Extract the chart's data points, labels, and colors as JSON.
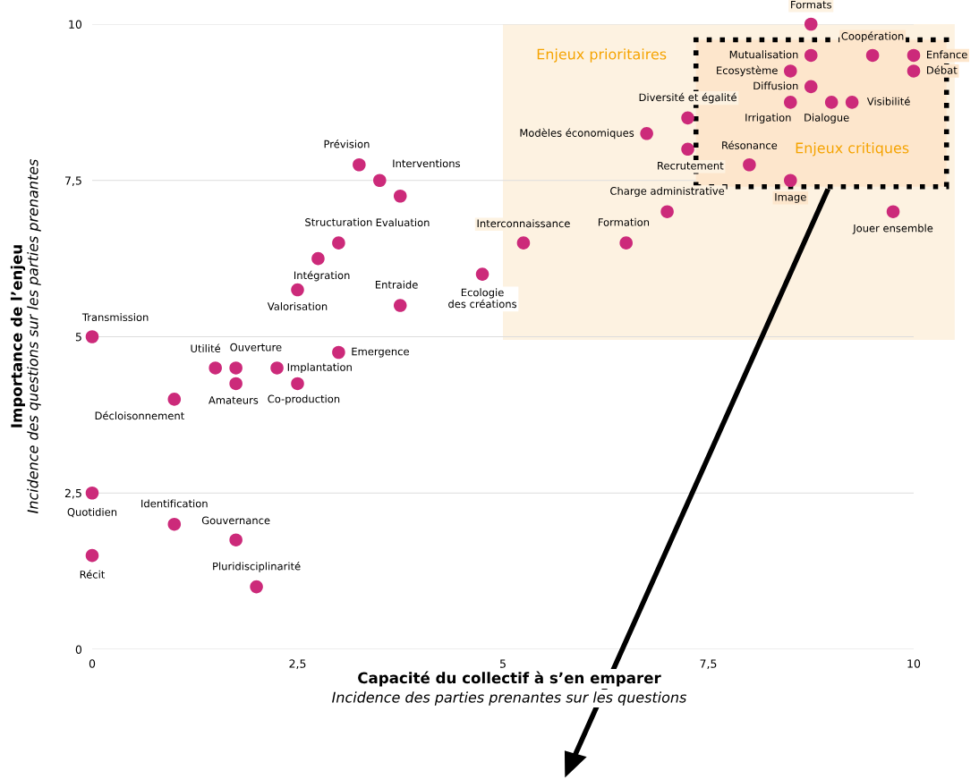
{
  "chart_data": {
    "type": "scatter",
    "xlabel": "Capacité du collectif à s’en emparer",
    "ylabel": "Importance de l’enjeu",
    "x": [
      8.75,
      8.75,
      9.5,
      10,
      10,
      8.5,
      8.75,
      8.5,
      9.0,
      9.25,
      7.25,
      6.75,
      7.25,
      8.0,
      8.5,
      7.0,
      9.75,
      6.5,
      5.25,
      4.75,
      3.25,
      3.5,
      3.75,
      3.0,
      2.75,
      2.5,
      3.75,
      0,
      3.0,
      1.5,
      1.75,
      2.25,
      1.75,
      2.5,
      1.0,
      0,
      1.0,
      1.75,
      0,
      2.0
    ],
    "series": [
      {
        "color": "#cc2a7a",
        "values": [
          10,
          9.5,
          9.5,
          9.5,
          9.25,
          9.25,
          9.0,
          8.75,
          8.75,
          8.75,
          8.5,
          8.25,
          8.0,
          7.75,
          7.5,
          7.0,
          7.0,
          6.5,
          6.5,
          6.0,
          7.75,
          7.5,
          7.25,
          6.5,
          6.25,
          5.75,
          5.5,
          5,
          4.75,
          4.5,
          4.5,
          4.5,
          4.25,
          4.25,
          4.0,
          2.5,
          2.0,
          1.75,
          1.5,
          1.0
        ]
      }
    ],
    "xlim": [
      0,
      10
    ],
    "ylim": [
      0,
      10
    ],
    "xticks": [
      0,
      {
        "value": 2.5,
        "label": "2,5"
      },
      5,
      {
        "value": 7.5,
        "label": "7,5"
      },
      10
    ],
    "yticks": [
      0,
      {
        "value": 2.5,
        "label": "2,5"
      },
      5,
      {
        "value": 7.5,
        "label": "7,5"
      },
      10
    ],
    "grid": "y",
    "marker": "circle",
    "bands": [
      {
        "axis": "x",
        "from": 5,
        "to": 10.5,
        "label": "Enjeux prioritaires",
        "color": "#fdf2e1"
      },
      {
        "axis": "x",
        "from": 7.35,
        "to": 10.4,
        "label": "Enjeux critiques",
        "color": "#fde6cc"
      }
    ],
    "annotations": [
      "Incidence des parties prenantes sur les questions",
      "Incidence des questions sur les parties prenantes",
      {
        "text": "Formats",
        "x": 8.75,
        "y": 10
      },
      {
        "text": "Mutualisation",
        "x": 8.75,
        "y": 9.5
      },
      {
        "text": "Coopération",
        "x": 9.5,
        "y": 9.5
      },
      {
        "text": "Enfance",
        "x": 10,
        "y": 9.5
      },
      {
        "text": "Débat",
        "x": 10,
        "y": 9.25
      },
      {
        "text": "Ecosystème",
        "x": 8.5,
        "y": 9.25
      },
      {
        "text": "Diffusion",
        "x": 8.75,
        "y": 9.0
      },
      {
        "text": "Irrigation",
        "x": 8.5,
        "y": 8.75
      },
      {
        "text": "Dialogue",
        "x": 9.0,
        "y": 8.75
      },
      {
        "text": "Visibilité",
        "x": 9.25,
        "y": 8.75
      },
      {
        "text": "Diversité et égalité",
        "x": 7.25,
        "y": 8.5
      },
      {
        "text": "Modèles économiques",
        "x": 6.75,
        "y": 8.25
      },
      {
        "text": "Recrutement",
        "x": 7.25,
        "y": 8.0
      },
      {
        "text": "Résonance",
        "x": 8.0,
        "y": 7.75
      },
      {
        "text": "Image",
        "x": 8.5,
        "y": 7.5
      },
      {
        "text": "Charge administrative",
        "x": 7.0,
        "y": 7.0
      },
      {
        "text": "Jouer ensemble",
        "x": 9.75,
        "y": 7.0
      },
      {
        "text": "Formation",
        "x": 6.5,
        "y": 6.5
      },
      {
        "text": "Interconnaissance",
        "x": 5.25,
        "y": 6.5
      },
      {
        "text": "Ecologie\ndes créations",
        "x": 4.75,
        "y": 6.0
      },
      {
        "text": "Prévision",
        "x": 3.25,
        "y": 7.75
      },
      {
        "text": "Interventions",
        "x": 3.5,
        "y": 7.5
      },
      {
        "text": "Evaluation",
        "x": 3.75,
        "y": 7.25
      },
      {
        "text": "Structuration",
        "x": 3.0,
        "y": 6.5
      },
      {
        "text": "Intégration",
        "x": 2.75,
        "y": 6.25
      },
      {
        "text": "Valorisation",
        "x": 2.5,
        "y": 5.75
      },
      {
        "text": "Entraide",
        "x": 3.75,
        "y": 5.5
      },
      {
        "text": "Transmission",
        "x": 0,
        "y": 5
      },
      {
        "text": "Emergence",
        "x": 3.0,
        "y": 4.75
      },
      {
        "text": "Utilité",
        "x": 1.5,
        "y": 4.5
      },
      {
        "text": "Ouverture",
        "x": 1.75,
        "y": 4.5
      },
      {
        "text": "Implantation",
        "x": 2.25,
        "y": 4.5
      },
      {
        "text": "Amateurs",
        "x": 1.75,
        "y": 4.25
      },
      {
        "text": "Co-production",
        "x": 2.5,
        "y": 4.25
      },
      {
        "text": "Décloisonnement",
        "x": 1.0,
        "y": 4.0
      },
      {
        "text": "Quotidien",
        "x": 0,
        "y": 2.5
      },
      {
        "text": "Identification",
        "x": 1.0,
        "y": 2.0
      },
      {
        "text": "Gouvernance",
        "x": 1.75,
        "y": 1.75
      },
      {
        "text": "Récit",
        "x": 0,
        "y": 1.5
      },
      {
        "text": "Pluridisciplinarité",
        "x": 2.0,
        "y": 1.0
      }
    ]
  }
}
